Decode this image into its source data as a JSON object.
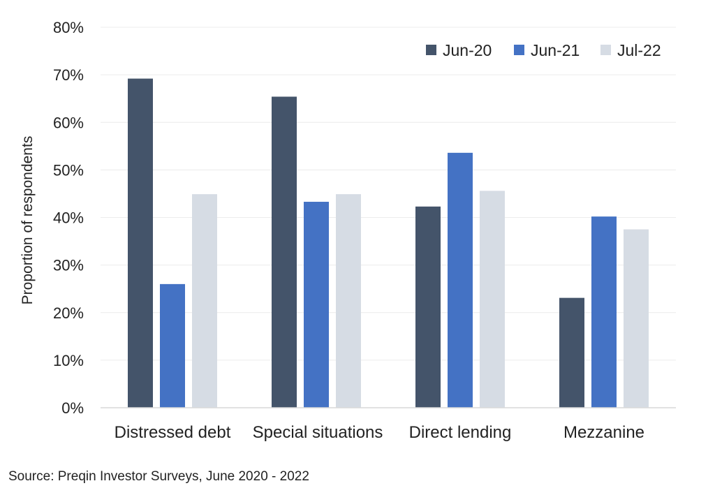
{
  "chart_data": {
    "type": "bar",
    "title": "",
    "xlabel": "",
    "ylabel": "Proportion of respondents",
    "categories": [
      "Distressed debt",
      "Special situations",
      "Direct lending",
      "Mezzanine"
    ],
    "series": [
      {
        "name": "Jun-20",
        "color": "#44546a",
        "values": [
          69.2,
          65.4,
          42.3,
          23.1
        ]
      },
      {
        "name": "Jun-21",
        "color": "#4472c4",
        "values": [
          26.0,
          43.3,
          53.6,
          40.2
        ]
      },
      {
        "name": "Jul-22",
        "color": "#d6dce4",
        "values": [
          44.9,
          44.9,
          45.6,
          37.5
        ]
      }
    ],
    "ylim": [
      0,
      80
    ],
    "yticks": [
      0,
      10,
      20,
      30,
      40,
      50,
      60,
      70,
      80
    ],
    "ytick_labels": [
      "0%",
      "10%",
      "20%",
      "30%",
      "40%",
      "50%",
      "60%",
      "70%",
      "80%"
    ],
    "grid": true,
    "legend_position": "top-right"
  },
  "source": "Source: Preqin Investor Surveys, June 2020 - 2022"
}
